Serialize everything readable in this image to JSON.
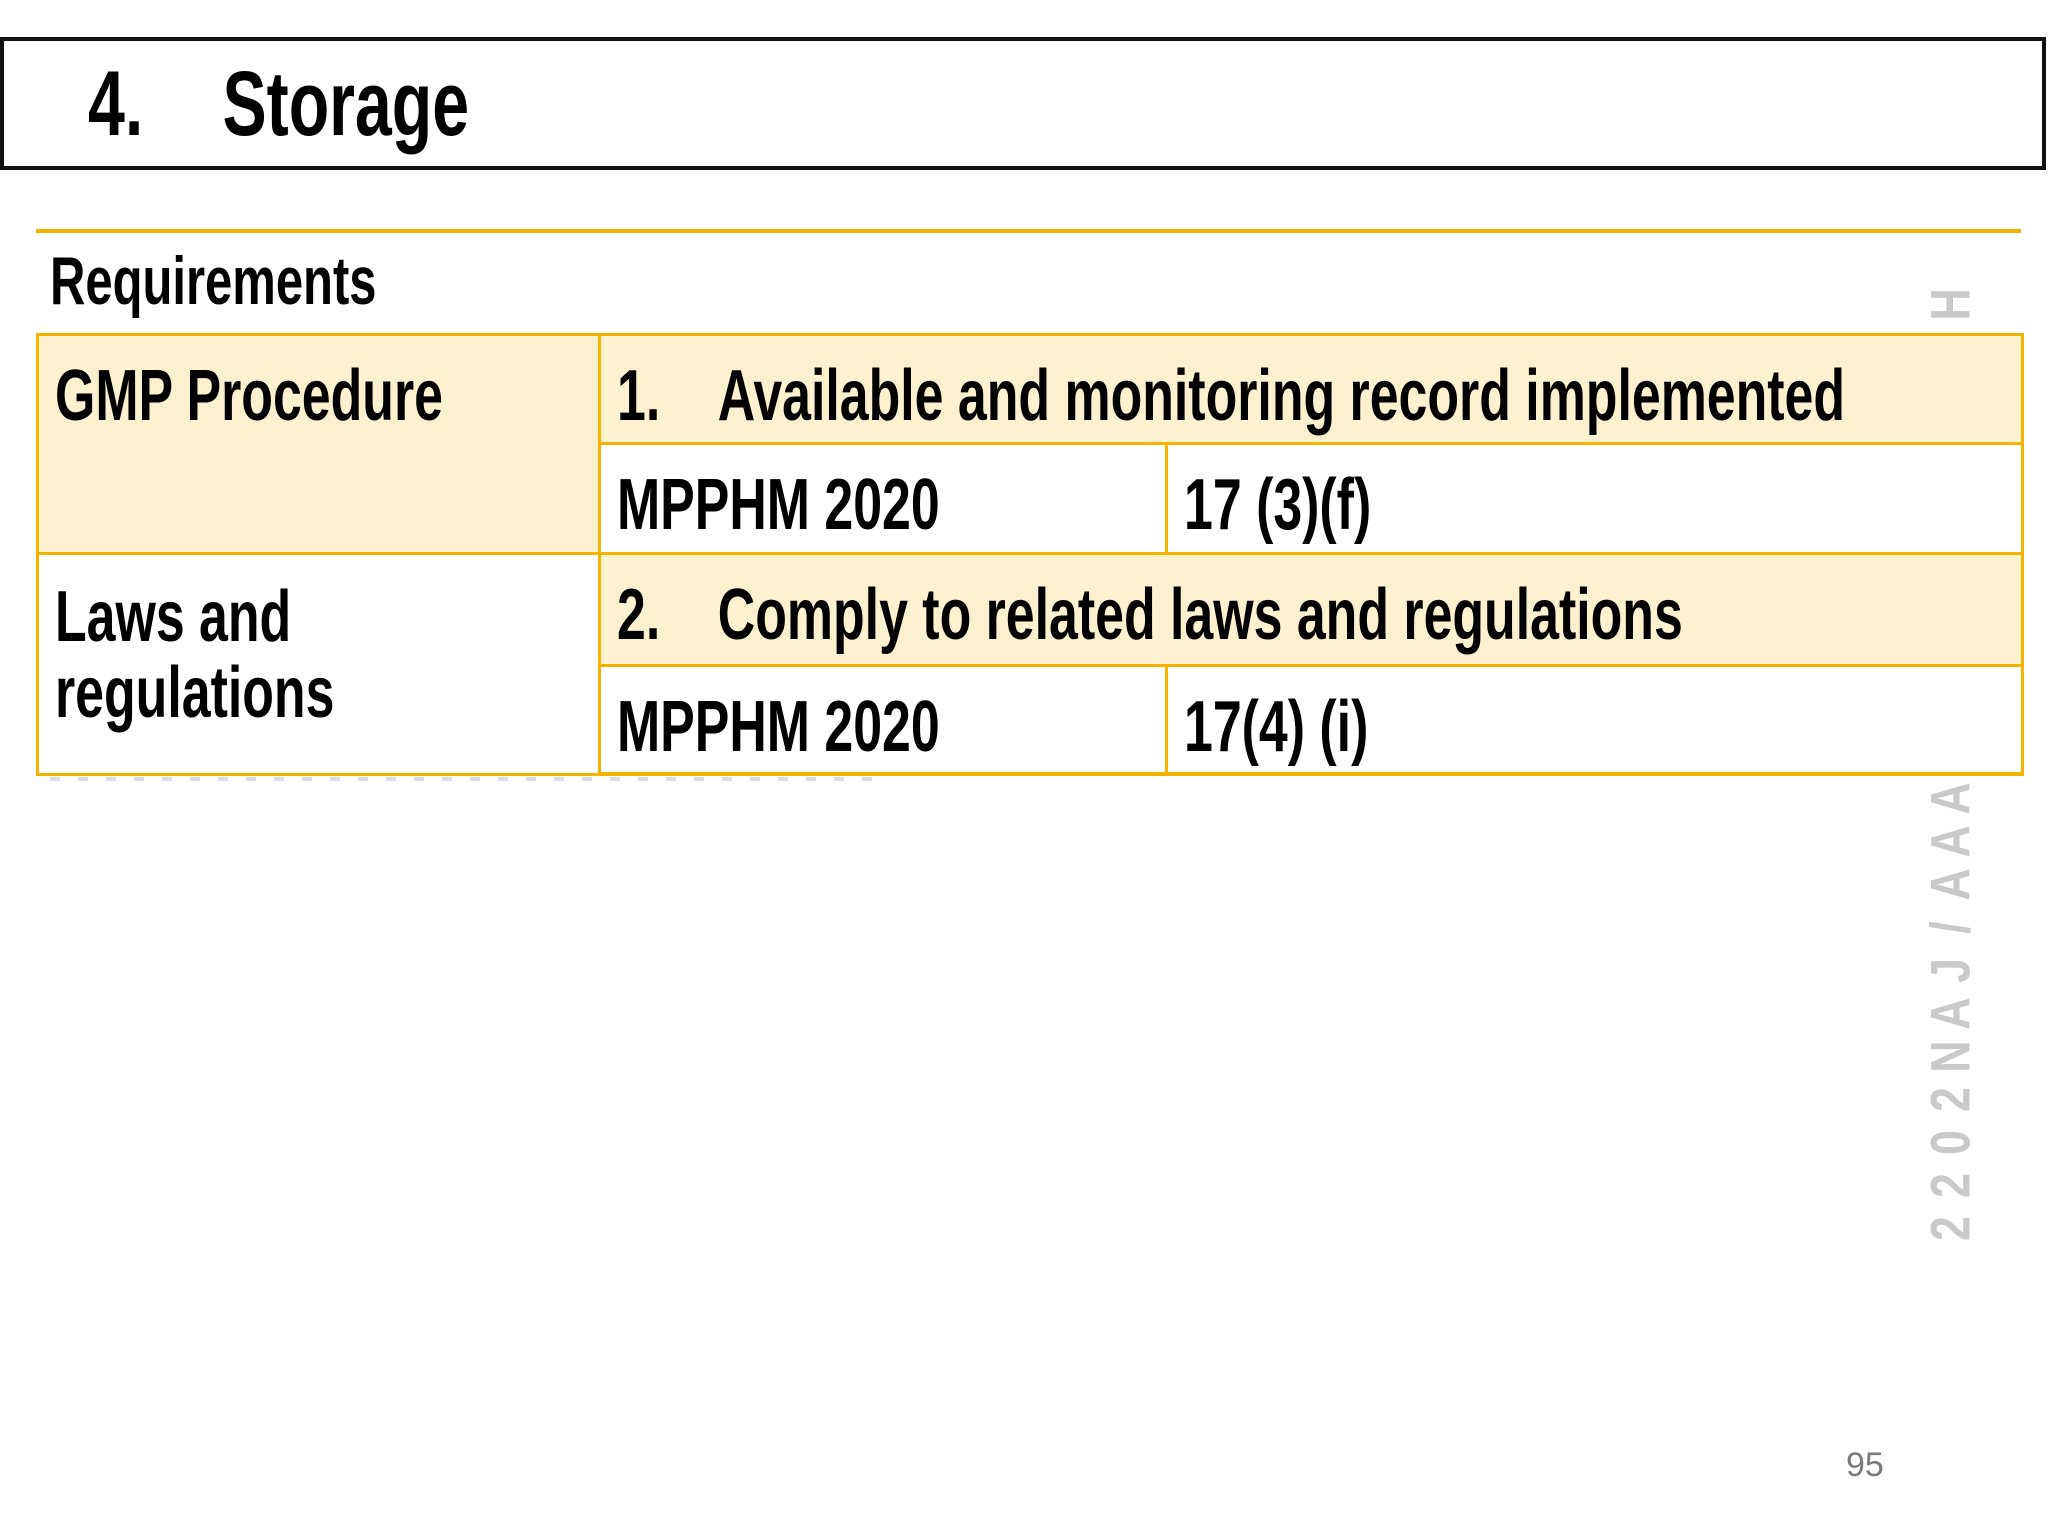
{
  "slide": {
    "title": {
      "number": "4.",
      "text": "Storage"
    },
    "section_heading": "Requirements",
    "table": {
      "rows": [
        {
          "category": "GMP Procedure",
          "item_number": "1.",
          "item_text": "Available and monitoring record implemented",
          "reference": "MPPHM 2020",
          "clause": "17 (3)(f)"
        },
        {
          "category": "Laws and regulations",
          "item_number": "2.",
          "item_text": "Comply to related laws and regulations",
          "reference": "MPPHM 2020",
          "clause": "17(4) (i)"
        }
      ]
    },
    "watermark_top": "H",
    "watermark_side": "AAA/JAN2022",
    "page_number": "95",
    "colors": {
      "accent_gold": "#F3B300",
      "cell_cream": "#FCF1CE",
      "watermark_gray": "#C9C9C9",
      "title_border": "#111111"
    }
  }
}
